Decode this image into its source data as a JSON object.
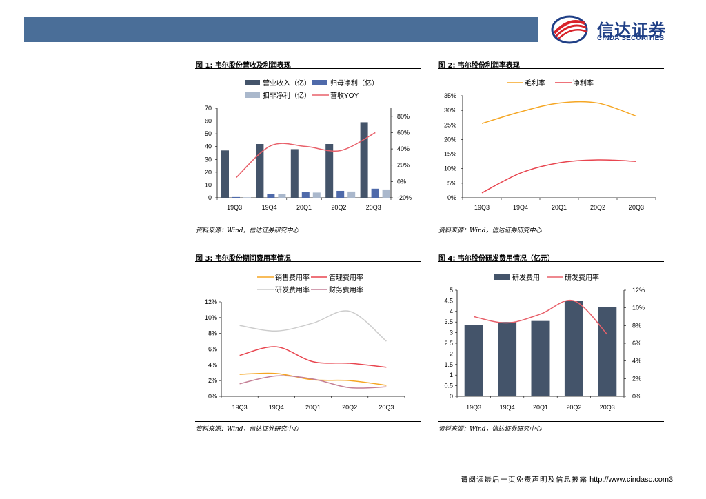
{
  "header": {
    "brand_cn": "信达证券",
    "brand_en": "CINDA SECURITIES"
  },
  "footer": {
    "text_cn": "请阅读最后一页免责声明及信息披露",
    "url": "http://www.cindasc.com",
    "page": "3"
  },
  "figures": [
    {
      "title": "图 1:  韦尔股份营收及利润表现",
      "source": "资料来源：Wind，信达证券研究中心"
    },
    {
      "title": "图 2:  韦尔股份利润率表现",
      "source": "资料来源：Wind，信达证券研究中心"
    },
    {
      "title": "图 3:  韦尔股份期间费用率情况",
      "source": "资料来源：Wind，信达证券研究中心"
    },
    {
      "title": "图 4:  韦尔股份研发费用情况（亿元）",
      "source": "资料来源：Wind，信达证券研究中心"
    }
  ],
  "chart_data": [
    {
      "type": "bar",
      "categories": [
        "19Q3",
        "19Q4",
        "20Q1",
        "20Q2",
        "20Q3"
      ],
      "series": [
        {
          "name": "营业收入（亿）",
          "kind": "bar",
          "axis": "left",
          "color": "#44546a",
          "values": [
            37,
            42,
            38,
            42,
            59
          ]
        },
        {
          "name": "归母净利（亿）",
          "kind": "bar",
          "axis": "left",
          "color": "#4f6aaa",
          "values": [
            0.6,
            3.1,
            4.3,
            5.4,
            7.1
          ]
        },
        {
          "name": "扣非净利（亿）",
          "kind": "bar",
          "axis": "left",
          "color": "#aab8cc",
          "values": [
            0.4,
            2.7,
            4.1,
            4.9,
            6.5
          ]
        },
        {
          "name": "营收YOY",
          "kind": "line",
          "axis": "right",
          "color": "#e8606a",
          "values": [
            5,
            44,
            43,
            38,
            60
          ]
        }
      ],
      "left_axis": {
        "ylim": [
          0,
          70
        ],
        "ticks": [
          "0",
          "10",
          "20",
          "30",
          "40",
          "50",
          "60",
          "70"
        ]
      },
      "right_axis": {
        "ylim": [
          -20,
          90
        ],
        "ticks": [
          "-20%",
          "0%",
          "20%",
          "40%",
          "60%",
          "80%"
        ]
      },
      "legend_position": "top"
    },
    {
      "type": "line",
      "categories": [
        "19Q3",
        "19Q4",
        "20Q1",
        "20Q2",
        "20Q3"
      ],
      "series": [
        {
          "name": "毛利率",
          "color": "#f5a623",
          "values": [
            25.5,
            29.5,
            32.5,
            32.5,
            28
          ]
        },
        {
          "name": "净利率",
          "color": "#e8454f",
          "values": [
            1.7,
            8.5,
            12,
            13,
            12.5
          ]
        }
      ],
      "ylim": [
        0,
        35
      ],
      "ticks": [
        "0%",
        "5%",
        "10%",
        "15%",
        "20%",
        "25%",
        "30%",
        "35%"
      ],
      "legend_position": "top"
    },
    {
      "type": "line",
      "categories": [
        "19Q3",
        "19Q4",
        "20Q1",
        "20Q2",
        "20Q3"
      ],
      "series": [
        {
          "name": "销售费用率",
          "color": "#f5a623",
          "values": [
            2.8,
            2.9,
            2.1,
            2.0,
            1.4
          ]
        },
        {
          "name": "管理费用率",
          "color": "#e8454f",
          "values": [
            5.2,
            6.3,
            4.4,
            4.2,
            3.7
          ]
        },
        {
          "name": "研发费用率",
          "color": "#cccccc",
          "values": [
            9.0,
            8.3,
            9.3,
            10.8,
            7.0
          ]
        },
        {
          "name": "财务费用率",
          "color": "#c47f95",
          "values": [
            1.6,
            2.6,
            2.2,
            1.1,
            1.2
          ]
        }
      ],
      "ylim": [
        0,
        12
      ],
      "ticks": [
        "0%",
        "2%",
        "4%",
        "6%",
        "8%",
        "10%",
        "12%"
      ],
      "legend_position": "top"
    },
    {
      "type": "bar",
      "categories": [
        "19Q3",
        "19Q4",
        "20Q1",
        "20Q2",
        "20Q3"
      ],
      "series": [
        {
          "name": "研发费用",
          "kind": "bar",
          "axis": "left",
          "color": "#44546a",
          "values": [
            3.35,
            3.5,
            3.55,
            4.5,
            4.2
          ]
        },
        {
          "name": "研发费用率",
          "kind": "line",
          "axis": "right",
          "color": "#e8606a",
          "values": [
            9.0,
            8.3,
            9.3,
            10.8,
            7.0
          ]
        }
      ],
      "left_axis": {
        "ylim": [
          0,
          5
        ],
        "ticks": [
          "0",
          "0.5",
          "1",
          "1.5",
          "2",
          "2.5",
          "3",
          "3.5",
          "4",
          "4.5",
          "5"
        ]
      },
      "right_axis": {
        "ylim": [
          0,
          12
        ],
        "ticks": [
          "0%",
          "2%",
          "4%",
          "6%",
          "8%",
          "10%",
          "12%"
        ]
      },
      "legend_position": "top"
    }
  ]
}
